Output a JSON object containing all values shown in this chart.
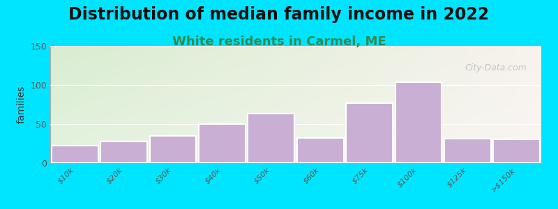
{
  "title": "Distribution of median family income in 2022",
  "subtitle": "White residents in Carmel, ME",
  "ylabel": "families",
  "categories": [
    "$10k",
    "$20k",
    "$30k",
    "$40k",
    "$50k",
    "$60k",
    "$75k",
    "$100k",
    "$125k",
    ">$150k"
  ],
  "values": [
    22,
    28,
    35,
    50,
    63,
    32,
    77,
    104,
    31,
    30
  ],
  "bar_color": "#c9afd4",
  "bar_edge_color": "#ffffff",
  "background_outer": "#00e5ff",
  "ylim": [
    0,
    150
  ],
  "yticks": [
    0,
    50,
    100,
    150
  ],
  "title_fontsize": 17,
  "subtitle_fontsize": 13,
  "subtitle_color": "#2e8b57",
  "ylabel_fontsize": 10,
  "watermark": "City-Data.com",
  "watermark_color": "#b0b0b0"
}
